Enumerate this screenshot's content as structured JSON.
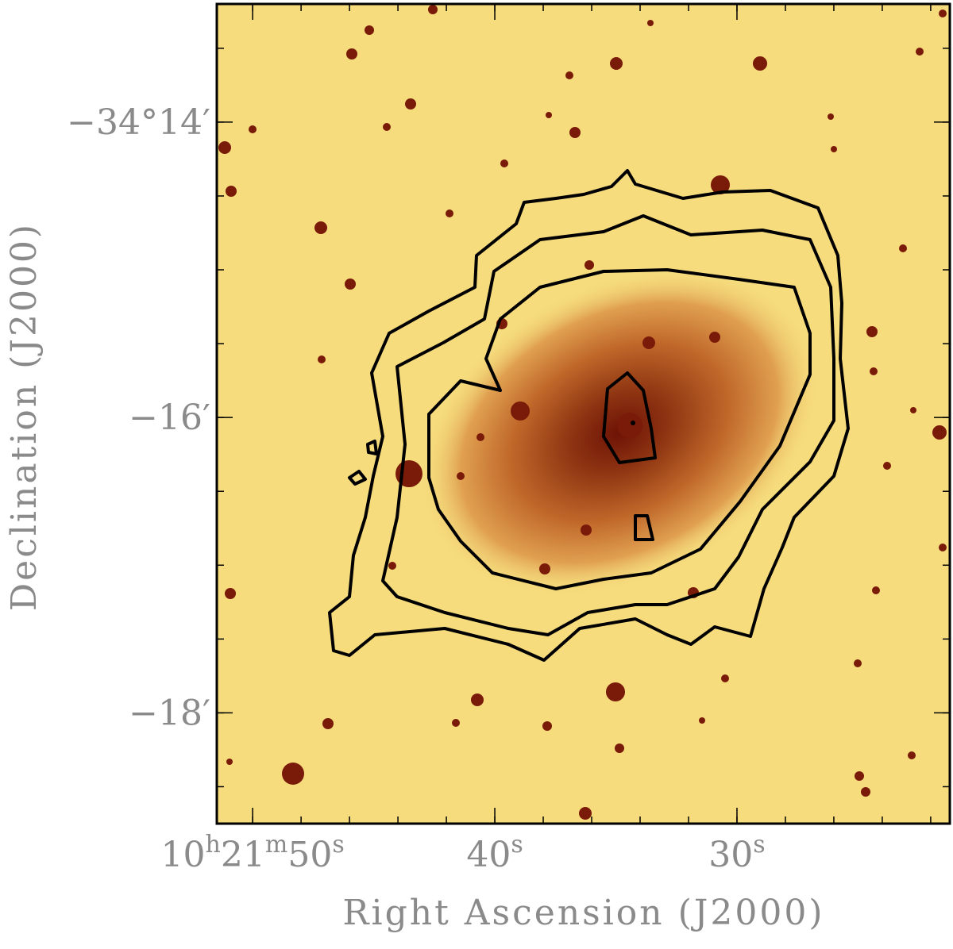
{
  "chart_data": {
    "type": "image",
    "xlabel": "Right Ascension (J2000)",
    "ylabel": "Declination (J2000)",
    "xlim": [
      51.48,
      21.21
    ],
    "ylim": [
      -18.75,
      -13.2
    ],
    "xticks": [
      {
        "value": 50,
        "label": "10h21m50s"
      },
      {
        "value": 40,
        "label": "40s"
      },
      {
        "value": 30,
        "label": "30s"
      }
    ],
    "yticks": [
      {
        "value": -14,
        "label": "−34°14′"
      },
      {
        "value": -16,
        "label": "−16′"
      },
      {
        "value": -18,
        "label": "−18′"
      }
    ],
    "xticks_minor": [
      50,
      48,
      46,
      44,
      42,
      40,
      38,
      36,
      34,
      32,
      30,
      28,
      26,
      24,
      22
    ],
    "yticks_minor": [
      -13.5,
      -14,
      -14.5,
      -15,
      -15.5,
      -16,
      -16.5,
      -17,
      -17.5,
      -18,
      -18.5
    ]
  }
}
